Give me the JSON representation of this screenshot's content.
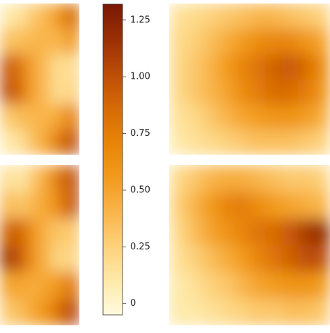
{
  "chart_data": {
    "type": "heatmap",
    "zlim": [
      -0.05,
      1.32
    ],
    "colors": [
      "#fffbe0",
      "#fee9a8",
      "#fdd17a",
      "#f9b44a",
      "#f29a1c",
      "#e88408",
      "#d66a06",
      "#bb4c07",
      "#9a2f06",
      "#7a1804"
    ],
    "cticks": [
      0,
      0.25,
      {
        "value": 0.5,
        "label": "0.50"
      },
      0.75,
      {
        "value": 1.0,
        "label": "1.00"
      },
      1.25
    ],
    "panels": [
      {
        "values": [
          [
            0.1,
            0.15,
            0.3,
            0.4,
            0.6,
            0.9
          ],
          [
            0.35,
            0.35,
            0.4,
            0.4,
            0.4,
            0.6
          ],
          [
            0.95,
            0.8,
            0.5,
            0.35,
            0.15,
            0.2
          ],
          [
            1.0,
            0.85,
            0.5,
            0.35,
            0.15,
            0.25
          ],
          [
            0.3,
            0.35,
            0.4,
            0.4,
            0.5,
            0.75
          ],
          [
            0.1,
            0.15,
            0.35,
            0.5,
            0.8,
            1.0
          ]
        ]
      },
      {
        "values": [
          [
            0.15,
            0.2,
            0.25,
            0.3,
            0.35,
            0.4,
            0.4,
            0.35,
            0.3,
            0.25
          ],
          [
            0.2,
            0.25,
            0.35,
            0.45,
            0.55,
            0.65,
            0.7,
            0.7,
            0.6,
            0.5
          ],
          [
            0.2,
            0.3,
            0.4,
            0.55,
            0.7,
            0.8,
            0.9,
            0.95,
            0.85,
            0.65
          ],
          [
            0.2,
            0.3,
            0.4,
            0.5,
            0.65,
            0.75,
            0.85,
            0.85,
            0.75,
            0.6
          ],
          [
            0.15,
            0.2,
            0.3,
            0.4,
            0.5,
            0.55,
            0.6,
            0.6,
            0.55,
            0.45
          ],
          [
            0.1,
            0.15,
            0.2,
            0.25,
            0.3,
            0.35,
            0.35,
            0.35,
            0.3,
            0.25
          ]
        ]
      },
      {
        "values": [
          [
            0.2,
            0.1,
            0.3,
            0.5,
            0.8,
            1.0
          ],
          [
            0.4,
            0.3,
            0.4,
            0.5,
            0.7,
            1.0
          ],
          [
            0.9,
            0.9,
            0.6,
            0.4,
            0.3,
            0.3
          ],
          [
            1.15,
            0.95,
            0.6,
            0.4,
            0.2,
            0.25
          ],
          [
            0.5,
            0.5,
            0.45,
            0.5,
            0.6,
            0.8
          ],
          [
            0.3,
            0.35,
            0.5,
            0.6,
            0.85,
            1.05
          ]
        ]
      },
      {
        "values": [
          [
            0.2,
            0.3,
            0.4,
            0.45,
            0.45,
            0.4,
            0.35,
            0.3,
            0.3,
            0.25
          ],
          [
            0.25,
            0.4,
            0.55,
            0.7,
            0.75,
            0.65,
            0.55,
            0.5,
            0.45,
            0.4
          ],
          [
            0.2,
            0.35,
            0.5,
            0.6,
            0.7,
            0.8,
            0.85,
            0.95,
            1.1,
            1.2
          ],
          [
            0.15,
            0.25,
            0.35,
            0.45,
            0.55,
            0.7,
            0.8,
            0.9,
            1.0,
            1.0
          ],
          [
            0.1,
            0.15,
            0.25,
            0.3,
            0.4,
            0.5,
            0.55,
            0.6,
            0.6,
            0.55
          ],
          [
            0.1,
            0.1,
            0.15,
            0.2,
            0.25,
            0.3,
            0.3,
            0.35,
            0.35,
            0.3
          ]
        ]
      }
    ]
  }
}
